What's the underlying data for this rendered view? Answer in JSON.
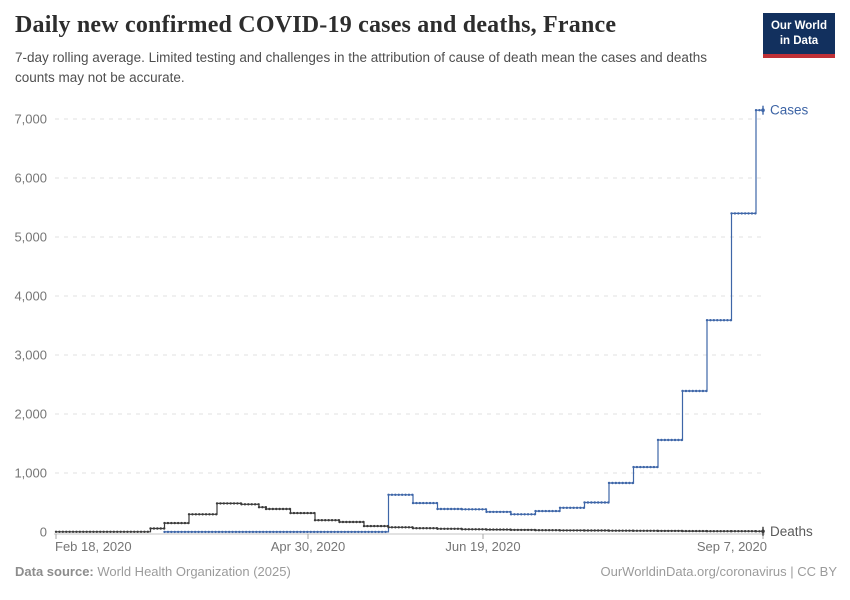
{
  "logo": {
    "line1": "Our World",
    "line2": "in Data"
  },
  "theme": {
    "logo_bg": "#12305e",
    "logo_accent": "#bf3036",
    "grid_color": "#e2e2e2",
    "baseline_color": "#c4c4c4",
    "tick_color": "#a6a6a6",
    "axis_text_color": "#767676"
  },
  "footer": {
    "source_label": "Data source:",
    "source_value": " World Health Organization (2025)",
    "license": "OurWorldinData.org/coronavirus | CC BY"
  },
  "chart_data": {
    "type": "line",
    "title": "Daily new confirmed COVID-19 cases and deaths, France",
    "subtitle": "7-day rolling average. Limited testing and challenges in the attribution of cause of death mean the cases and deaths counts may not be accurate.",
    "xlabel": "",
    "ylabel": "",
    "grid": true,
    "legend_position": "end-of-line",
    "ylim": [
      0,
      7150
    ],
    "x_start_date": "Feb 18, 2020",
    "x_end_date": "Sep 7, 2020",
    "end_day": 202,
    "x_ticks": [
      {
        "day": 0,
        "label": "Feb 18, 2020",
        "anchor": "start"
      },
      {
        "day": 72,
        "label": "Apr 30, 2020",
        "anchor": "middle"
      },
      {
        "day": 122,
        "label": "Jun 19, 2020",
        "anchor": "middle"
      },
      {
        "day": 202,
        "label": "Sep 7, 2020",
        "anchor": "end"
      }
    ],
    "y_ticks": [
      {
        "value": 0,
        "label": "0"
      },
      {
        "value": 1000,
        "label": "1,000"
      },
      {
        "value": 2000,
        "label": "2,000"
      },
      {
        "value": 3000,
        "label": "3,000"
      },
      {
        "value": 4000,
        "label": "4,000"
      },
      {
        "value": 5000,
        "label": "5,000"
      },
      {
        "value": 6000,
        "label": "6,000"
      },
      {
        "value": 7000,
        "label": "7,000"
      }
    ],
    "series": [
      {
        "name": "Cases",
        "color": "#3e66a8",
        "label_color": "#3d64a5",
        "points_note": "step values: [days since Feb 18 2020, daily new cases 7-day avg]",
        "points": [
          [
            31,
            2
          ],
          [
            95,
            630
          ],
          [
            102,
            490
          ],
          [
            109,
            390
          ],
          [
            116,
            385
          ],
          [
            123,
            340
          ],
          [
            130,
            300
          ],
          [
            137,
            355
          ],
          [
            144,
            410
          ],
          [
            151,
            500
          ],
          [
            158,
            830
          ],
          [
            165,
            1100
          ],
          [
            172,
            1560
          ],
          [
            179,
            2390
          ],
          [
            186,
            3590
          ],
          [
            193,
            5400
          ],
          [
            200,
            7150
          ]
        ]
      },
      {
        "name": "Deaths",
        "color": "#3b3b3b",
        "label_color": "#5a5a5a",
        "points_note": "step values: [days since Feb 18 2020, daily new deaths 7-day avg]",
        "points": [
          [
            0,
            4
          ],
          [
            27,
            60
          ],
          [
            31,
            150
          ],
          [
            38,
            300
          ],
          [
            46,
            485
          ],
          [
            53,
            470
          ],
          [
            58,
            420
          ],
          [
            60,
            390
          ],
          [
            67,
            320
          ],
          [
            74,
            200
          ],
          [
            81,
            170
          ],
          [
            88,
            100
          ],
          [
            95,
            80
          ],
          [
            102,
            65
          ],
          [
            109,
            55
          ],
          [
            116,
            45
          ],
          [
            123,
            40
          ],
          [
            130,
            35
          ],
          [
            137,
            30
          ],
          [
            144,
            27
          ],
          [
            151,
            25
          ],
          [
            158,
            22
          ],
          [
            165,
            20
          ],
          [
            172,
            18
          ],
          [
            179,
            16
          ],
          [
            186,
            14
          ],
          [
            193,
            13
          ],
          [
            200,
            12
          ]
        ]
      }
    ]
  }
}
